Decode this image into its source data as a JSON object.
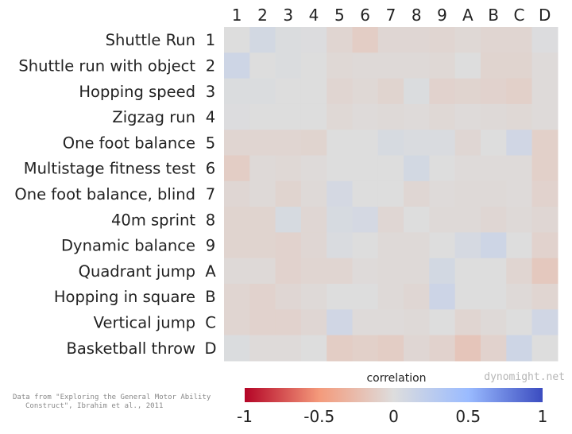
{
  "chart_data": {
    "type": "heatmap",
    "title": "",
    "col_labels": [
      "1",
      "2",
      "3",
      "4",
      "5",
      "6",
      "7",
      "8",
      "9",
      "A",
      "B",
      "C",
      "D"
    ],
    "row_labels": [
      {
        "name": "Shuttle Run",
        "code": "1"
      },
      {
        "name": "Shuttle run with object",
        "code": "2"
      },
      {
        "name": "Hopping speed",
        "code": "3"
      },
      {
        "name": "Zigzag run",
        "code": "4"
      },
      {
        "name": "One foot balance",
        "code": "5"
      },
      {
        "name": "Multistage fitness test",
        "code": "6"
      },
      {
        "name": "One foot balance, blind",
        "code": "7"
      },
      {
        "name": "40m sprint",
        "code": "8"
      },
      {
        "name": "Dynamic balance",
        "code": "9"
      },
      {
        "name": "Quadrant jump",
        "code": "A"
      },
      {
        "name": "Hopping in square",
        "code": "B"
      },
      {
        "name": "Vertical jump",
        "code": "C"
      },
      {
        "name": "Basketball throw",
        "code": "D"
      }
    ],
    "values": [
      [
        0.0,
        0.08,
        0.02,
        0.01,
        -0.06,
        -0.12,
        -0.05,
        -0.05,
        -0.06,
        -0.04,
        -0.06,
        -0.06,
        0.01
      ],
      [
        0.12,
        0.0,
        0.02,
        0.0,
        -0.04,
        -0.03,
        -0.03,
        -0.03,
        -0.04,
        0.0,
        -0.07,
        -0.07,
        -0.02
      ],
      [
        0.02,
        0.02,
        0.0,
        0.0,
        -0.06,
        -0.04,
        -0.07,
        0.02,
        -0.08,
        -0.07,
        -0.08,
        -0.1,
        -0.02
      ],
      [
        0.01,
        0.0,
        0.0,
        0.0,
        -0.04,
        -0.02,
        -0.03,
        -0.02,
        -0.04,
        -0.02,
        -0.03,
        -0.04,
        -0.02
      ],
      [
        -0.06,
        -0.06,
        -0.06,
        -0.07,
        0.0,
        0.0,
        0.05,
        0.03,
        0.03,
        -0.05,
        0.0,
        0.1,
        -0.1
      ],
      [
        -0.12,
        -0.03,
        -0.04,
        -0.02,
        0.0,
        0.0,
        0.0,
        0.08,
        0.0,
        -0.02,
        -0.02,
        -0.02,
        -0.1
      ],
      [
        -0.05,
        -0.03,
        -0.07,
        -0.03,
        0.07,
        0.0,
        0.0,
        -0.05,
        -0.02,
        -0.03,
        -0.03,
        -0.02,
        -0.08
      ],
      [
        -0.07,
        -0.07,
        0.05,
        -0.05,
        0.05,
        0.07,
        -0.05,
        0.0,
        -0.03,
        -0.03,
        -0.05,
        -0.03,
        -0.05
      ],
      [
        -0.07,
        -0.07,
        -0.08,
        -0.05,
        0.03,
        0.0,
        -0.03,
        -0.03,
        0.0,
        0.06,
        0.12,
        0.0,
        -0.08
      ],
      [
        -0.03,
        -0.03,
        -0.08,
        -0.06,
        -0.06,
        -0.02,
        -0.03,
        -0.03,
        0.08,
        0.0,
        0.0,
        -0.06,
        -0.16
      ],
      [
        -0.06,
        -0.08,
        -0.05,
        -0.03,
        0.0,
        0.0,
        -0.03,
        -0.05,
        0.13,
        0.0,
        0.0,
        -0.03,
        -0.06
      ],
      [
        -0.06,
        -0.08,
        -0.08,
        -0.05,
        0.1,
        -0.02,
        -0.02,
        -0.03,
        0.0,
        -0.06,
        -0.03,
        0.0,
        0.1
      ],
      [
        0.02,
        -0.02,
        -0.02,
        0.0,
        -0.12,
        -0.1,
        -0.12,
        -0.05,
        -0.08,
        -0.18,
        -0.08,
        0.12,
        0.0
      ]
    ],
    "colorbar": {
      "label": "correlation",
      "range": [
        -1,
        1
      ],
      "ticks": [
        "-1",
        "-0.5",
        "0",
        "0.5",
        "1"
      ],
      "tick_values": [
        -1,
        -0.5,
        0,
        0.5,
        1
      ],
      "colormap": "coolwarm (reversed: red = -1, blue = +1)",
      "stops": [
        {
          "value": -1,
          "color": "#b40426"
        },
        {
          "value": -0.5,
          "color": "#f49a7b"
        },
        {
          "value": 0,
          "color": "#dddddd"
        },
        {
          "value": 0.5,
          "color": "#9abbff"
        },
        {
          "value": 1,
          "color": "#3b4cc0"
        }
      ]
    }
  },
  "source_note": [
    "Data from \"Exploring the General Motor Ability",
    "Construct\", Ibrahim et al., 2011"
  ],
  "watermark": "dynomight.net"
}
